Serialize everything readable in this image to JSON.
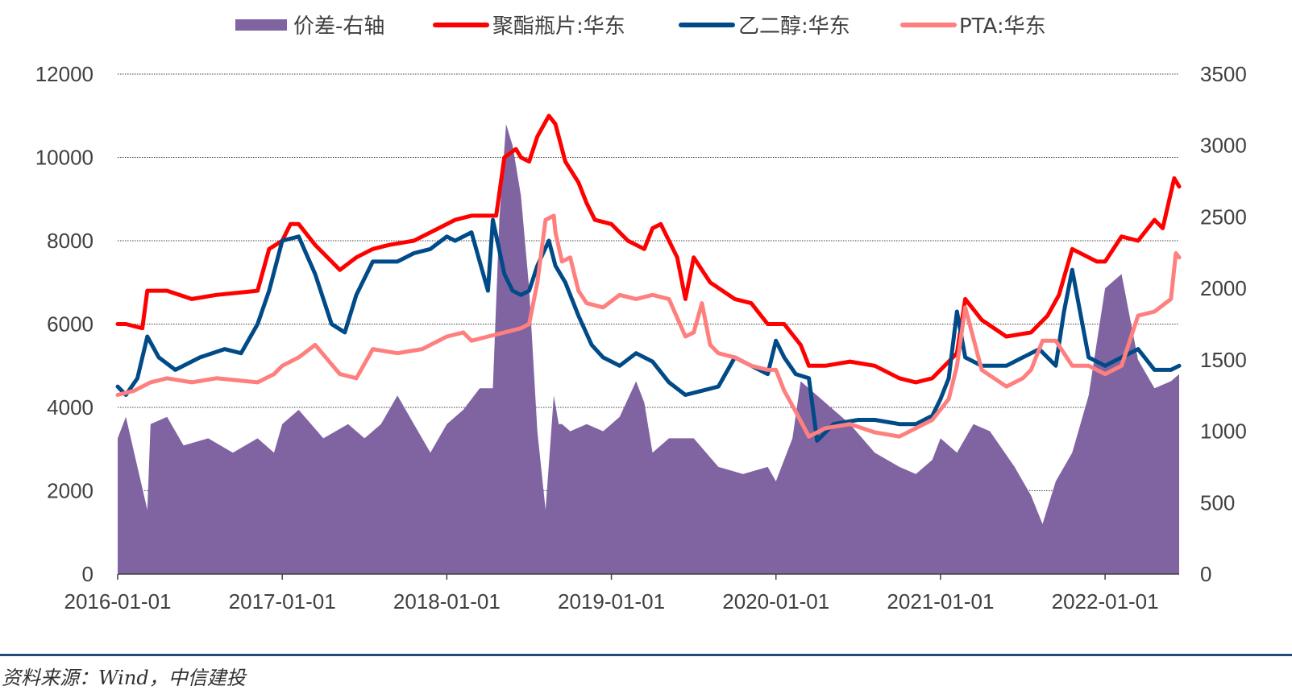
{
  "chart_data": {
    "type": "line",
    "title": "",
    "legend_position": "top",
    "x_labels": [
      "2016-01-01",
      "2017-01-01",
      "2018-01-01",
      "2019-01-01",
      "2020-01-01",
      "2021-01-01",
      "2022-01-01"
    ],
    "x_range": [
      2016.0,
      2022.45
    ],
    "left_axis": {
      "min": 0,
      "max": 12000,
      "ticks": [
        0,
        2000,
        4000,
        6000,
        8000,
        10000,
        12000
      ]
    },
    "right_axis": {
      "min": 0,
      "max": 3500,
      "ticks": [
        0,
        500,
        1000,
        1500,
        2000,
        2500,
        3000,
        3500
      ]
    },
    "grid": true,
    "series": [
      {
        "name": "价差-右轴",
        "kind": "area",
        "axis": "right",
        "color": "#8064a2",
        "x": [
          2016.0,
          2016.05,
          2016.12,
          2016.18,
          2016.2,
          2016.3,
          2016.4,
          2016.55,
          2016.7,
          2016.85,
          2016.95,
          2017.0,
          2017.1,
          2017.25,
          2017.4,
          2017.5,
          2017.6,
          2017.7,
          2017.8,
          2017.9,
          2018.0,
          2018.1,
          2018.2,
          2018.28,
          2018.32,
          2018.36,
          2018.4,
          2018.45,
          2018.5,
          2018.55,
          2018.6,
          2018.65,
          2018.68,
          2018.7,
          2018.75,
          2018.85,
          2018.95,
          2019.05,
          2019.15,
          2019.2,
          2019.25,
          2019.35,
          2019.5,
          2019.65,
          2019.8,
          2019.95,
          2020.0,
          2020.1,
          2020.15,
          2020.25,
          2020.35,
          2020.45,
          2020.6,
          2020.75,
          2020.85,
          2020.95,
          2021.0,
          2021.1,
          2021.2,
          2021.3,
          2021.45,
          2021.55,
          2021.62,
          2021.7,
          2021.8,
          2021.9,
          2022.0,
          2022.05,
          2022.1,
          2022.2,
          2022.3,
          2022.4,
          2022.45
        ],
        "y": [
          950,
          1100,
          750,
          450,
          1050,
          1100,
          900,
          950,
          850,
          950,
          850,
          1050,
          1150,
          950,
          1050,
          950,
          1050,
          1250,
          1050,
          850,
          1050,
          1150,
          1300,
          1300,
          2500,
          3150,
          3000,
          2650,
          2000,
          1000,
          450,
          1250,
          1050,
          1050,
          1000,
          1050,
          1000,
          1100,
          1350,
          1200,
          850,
          950,
          950,
          750,
          700,
          750,
          650,
          950,
          1350,
          1250,
          1150,
          1050,
          850,
          750,
          700,
          800,
          950,
          850,
          1050,
          1000,
          750,
          550,
          350,
          650,
          850,
          1250,
          2000,
          2050,
          2100,
          1500,
          1300,
          1350,
          1400
        ]
      },
      {
        "name": "聚酯瓶片:华东",
        "kind": "line",
        "axis": "left",
        "color": "#ff0000",
        "x": [
          2016.0,
          2016.05,
          2016.15,
          2016.18,
          2016.3,
          2016.45,
          2016.6,
          2016.85,
          2016.92,
          2017.0,
          2017.05,
          2017.1,
          2017.2,
          2017.35,
          2017.45,
          2017.55,
          2017.65,
          2017.8,
          2017.95,
          2018.05,
          2018.15,
          2018.25,
          2018.3,
          2018.35,
          2018.42,
          2018.45,
          2018.5,
          2018.55,
          2018.62,
          2018.66,
          2018.72,
          2018.8,
          2018.85,
          2018.9,
          2019.0,
          2019.1,
          2019.2,
          2019.25,
          2019.3,
          2019.4,
          2019.45,
          2019.5,
          2019.6,
          2019.75,
          2019.85,
          2019.95,
          2020.05,
          2020.15,
          2020.2,
          2020.3,
          2020.45,
          2020.6,
          2020.75,
          2020.85,
          2020.95,
          2021.05,
          2021.1,
          2021.15,
          2021.25,
          2021.4,
          2021.55,
          2021.65,
          2021.72,
          2021.8,
          2021.95,
          2022.0,
          2022.1,
          2022.2,
          2022.3,
          2022.35,
          2022.42,
          2022.45
        ],
        "y": [
          6000,
          6000,
          5900,
          6800,
          6800,
          6600,
          6700,
          6800,
          7800,
          8000,
          8400,
          8400,
          7900,
          7300,
          7600,
          7800,
          7900,
          8000,
          8300,
          8500,
          8600,
          8600,
          8600,
          10000,
          10200,
          10000,
          9900,
          10500,
          11000,
          10800,
          9900,
          9400,
          8900,
          8500,
          8400,
          8000,
          7800,
          8300,
          8400,
          7600,
          6600,
          7600,
          7000,
          6600,
          6500,
          6000,
          6000,
          5500,
          5000,
          5000,
          5100,
          5000,
          4700,
          4600,
          4700,
          5100,
          5300,
          6600,
          6100,
          5700,
          5800,
          6200,
          6700,
          7800,
          7500,
          7500,
          8100,
          8000,
          8500,
          8300,
          9500,
          9300
        ]
      },
      {
        "name": "乙二醇:华东",
        "kind": "line",
        "axis": "left",
        "color": "#004b87",
        "x": [
          2016.0,
          2016.05,
          2016.12,
          2016.18,
          2016.25,
          2016.35,
          2016.5,
          2016.65,
          2016.75,
          2016.85,
          2016.92,
          2017.0,
          2017.1,
          2017.2,
          2017.3,
          2017.38,
          2017.45,
          2017.55,
          2017.7,
          2017.8,
          2017.9,
          2018.0,
          2018.05,
          2018.15,
          2018.2,
          2018.25,
          2018.28,
          2018.35,
          2018.4,
          2018.45,
          2018.5,
          2018.55,
          2018.62,
          2018.66,
          2018.72,
          2018.8,
          2018.88,
          2018.95,
          2019.05,
          2019.15,
          2019.25,
          2019.35,
          2019.45,
          2019.55,
          2019.65,
          2019.75,
          2019.85,
          2019.95,
          2020.0,
          2020.05,
          2020.12,
          2020.2,
          2020.25,
          2020.35,
          2020.5,
          2020.6,
          2020.75,
          2020.85,
          2020.95,
          2021.0,
          2021.05,
          2021.1,
          2021.15,
          2021.25,
          2021.4,
          2021.5,
          2021.6,
          2021.7,
          2021.75,
          2021.8,
          2021.9,
          2022.0,
          2022.1,
          2022.2,
          2022.3,
          2022.4,
          2022.45
        ],
        "y": [
          4500,
          4300,
          4700,
          5700,
          5200,
          4900,
          5200,
          5400,
          5300,
          6000,
          6800,
          8000,
          8100,
          7200,
          6000,
          5800,
          6700,
          7500,
          7500,
          7700,
          7800,
          8100,
          8000,
          8200,
          7500,
          6800,
          8500,
          7200,
          6800,
          6700,
          6800,
          7400,
          8000,
          7400,
          7000,
          6200,
          5500,
          5200,
          5000,
          5300,
          5100,
          4600,
          4300,
          4400,
          4500,
          5200,
          5000,
          4800,
          5600,
          5200,
          4800,
          4700,
          3200,
          3600,
          3700,
          3700,
          3600,
          3600,
          3800,
          4200,
          4700,
          6300,
          5200,
          5000,
          5000,
          5200,
          5400,
          5000,
          6300,
          7300,
          5200,
          5000,
          5200,
          5400,
          4900,
          4900,
          5000
        ]
      },
      {
        "name": "PTA:华东",
        "kind": "line",
        "axis": "left",
        "color": "#ff7f7f",
        "x": [
          2016.0,
          2016.1,
          2016.2,
          2016.3,
          2016.45,
          2016.6,
          2016.85,
          2016.95,
          2017.0,
          2017.1,
          2017.2,
          2017.35,
          2017.45,
          2017.55,
          2017.7,
          2017.85,
          2017.95,
          2018.0,
          2018.1,
          2018.15,
          2018.25,
          2018.35,
          2018.45,
          2018.5,
          2018.55,
          2018.6,
          2018.65,
          2018.66,
          2018.7,
          2018.75,
          2018.8,
          2018.85,
          2018.95,
          2019.05,
          2019.15,
          2019.25,
          2019.35,
          2019.45,
          2019.5,
          2019.55,
          2019.6,
          2019.65,
          2019.75,
          2019.85,
          2019.95,
          2020.0,
          2020.05,
          2020.12,
          2020.2,
          2020.3,
          2020.45,
          2020.6,
          2020.75,
          2020.85,
          2020.95,
          2021.05,
          2021.1,
          2021.15,
          2021.25,
          2021.4,
          2021.5,
          2021.55,
          2021.62,
          2021.7,
          2021.8,
          2021.9,
          2022.0,
          2022.1,
          2022.2,
          2022.3,
          2022.4,
          2022.43,
          2022.45
        ],
        "y": [
          4300,
          4400,
          4600,
          4700,
          4600,
          4700,
          4600,
          4800,
          5000,
          5200,
          5500,
          4800,
          4700,
          5400,
          5300,
          5400,
          5600,
          5700,
          5800,
          5600,
          5700,
          5800,
          5900,
          6000,
          7000,
          8500,
          8600,
          8200,
          7500,
          7600,
          6800,
          6500,
          6400,
          6700,
          6600,
          6700,
          6600,
          5700,
          5800,
          6500,
          5500,
          5300,
          5200,
          5000,
          4900,
          4900,
          4400,
          3900,
          3300,
          3500,
          3600,
          3400,
          3300,
          3500,
          3700,
          4200,
          5000,
          6400,
          4900,
          4500,
          4700,
          4900,
          5600,
          5600,
          5000,
          5000,
          4800,
          5000,
          6200,
          6300,
          6600,
          7700,
          7600
        ]
      }
    ]
  },
  "source_text": "资料来源：Wind，中信建投"
}
